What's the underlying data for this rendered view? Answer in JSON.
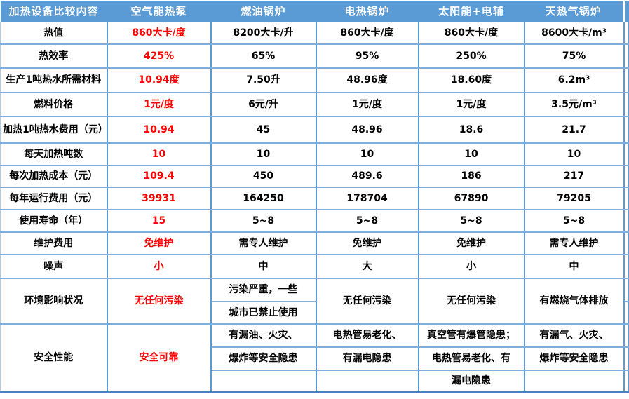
{
  "table": {
    "title": "加热设备比较内容",
    "header": [
      "加热设备比较内容",
      "空气能热泵",
      "燃油锅炉",
      "电热锅炉",
      "太阳能+电辅",
      "天热气锅炉"
    ],
    "rows": [
      {
        "label": "热值",
        "values": [
          "860大卡/度",
          "8200大卡/升",
          "860大卡/度",
          "860大卡/度",
          "8600大卡/m³"
        ]
      },
      {
        "label": "热效率",
        "values": [
          "425%",
          "65%",
          "95%",
          "250%",
          "75%"
        ]
      },
      {
        "label": "生产1吨热水所需材料",
        "values": [
          "10.94度",
          "7.50升",
          "48.96度",
          "18.60度",
          "6.2m³"
        ]
      },
      {
        "label": "燃料价格",
        "values": [
          "1元/度",
          "6元/升",
          "1元/度",
          "1元/度",
          "3.5元/m³"
        ]
      },
      {
        "label": "加热1吨热水费用（元）",
        "values": [
          "10.94",
          "45",
          "48.96",
          "18.6",
          "21.7"
        ]
      },
      {
        "label": "每天加热吨数",
        "values": [
          "10",
          "10",
          "10",
          "10",
          "10"
        ]
      },
      {
        "label": "每次加热成本（元）",
        "values": [
          "109.4",
          "450",
          "489.6",
          "186",
          "217"
        ]
      },
      {
        "label": "每年运行费用（元）",
        "values": [
          "39931",
          "164250",
          "178704",
          "67890",
          "79205"
        ]
      },
      {
        "label": "使用寿命（年）",
        "values": [
          "15",
          "5~8",
          "5~8",
          "5~8",
          "5~8"
        ]
      },
      {
        "label": "维护费用",
        "values": [
          "免维护",
          "需专人维护",
          "免维护",
          "免维护",
          "需专人维护"
        ]
      },
      {
        "label": "噪声",
        "values": [
          "小",
          "中",
          "大",
          "小",
          "中"
        ]
      }
    ],
    "env": {
      "label": "环境影响状况",
      "heat_pump": "无任何污染",
      "oil": [
        "污染严重，一些",
        "城市已禁止使用"
      ],
      "electric": "无任何污染",
      "solar": "无任何污染",
      "gas": "有燃烧气体排放"
    },
    "safety": {
      "label": "安全性能",
      "heat_pump": "安全可靠",
      "oil": [
        "有漏油、火灾、",
        "爆炸等安全隐患",
        ""
      ],
      "electric": [
        "电热管易老化、",
        "有漏电隐患",
        ""
      ],
      "solar": [
        "真空管有爆管隐患；",
        "电热管易老化、有",
        "漏电隐患"
      ],
      "gas": [
        "有漏气、火灾、",
        "爆炸等安全隐患",
        ""
      ]
    },
    "colors": {
      "header_bg": "#5b9bd5",
      "header_text": "#ffffff",
      "accent_red": "#ff0000",
      "grid_vertical": "#5b9bd5",
      "grid_horizontal": "#7fadde",
      "bottom_border": "#4a80c4",
      "cell_text": "#000000"
    }
  }
}
